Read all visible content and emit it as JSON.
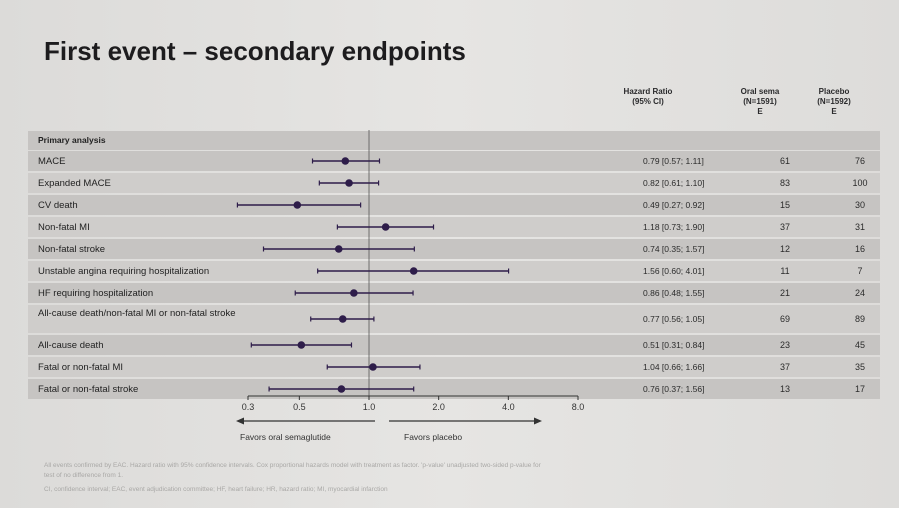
{
  "title": "First event – secondary endpoints",
  "headers": {
    "hr_line1": "Hazard Ratio",
    "hr_line2": "(95% CI)",
    "oral_line1": "Oral sema",
    "oral_line2": "(N=1591)",
    "oral_line3": "E",
    "placebo_line1": "Placebo",
    "placebo_line2": "(N=1592)",
    "placebo_line3": "E"
  },
  "section_label": "Primary analysis",
  "favors_left": "Favors oral semaglutide",
  "favors_right": "Favors placebo",
  "footnote_line1": "All events confirmed by EAC. Hazard ratio with 95% confidence intervals. Cox proportional hazards model with treatment as factor. 'p-value' unadjusted two-sided p-value for",
  "footnote_line2": "test of no difference from 1.",
  "footnote_line3": "CI, confidence interval; EAC, event adjudication committee; HF, heart failure; HR, hazard ratio; MI, myocardial infarction",
  "colors": {
    "marker": "#2e1d4a",
    "row_band": "#c6c4c2",
    "row_band_alt": "#cfcdcb"
  },
  "chart_data": {
    "type": "forest",
    "x_scale": "log",
    "xlim": [
      0.3,
      8.0
    ],
    "x_ticks": [
      0.3,
      0.5,
      1.0,
      2.0,
      4.0,
      8.0
    ],
    "x_tick_labels": [
      "0.3",
      "0.5",
      "1.0",
      "2.0",
      "4.0",
      "8.0"
    ],
    "reference_line": 1.0,
    "rows": [
      {
        "label": "MACE",
        "hr": 0.79,
        "lo": 0.57,
        "hi": 1.11,
        "ci_text": "0.79 [0.57; 1.11]",
        "oral": "61",
        "placebo": "76"
      },
      {
        "label": "Expanded MACE",
        "hr": 0.82,
        "lo": 0.61,
        "hi": 1.1,
        "ci_text": "0.82 [0.61; 1.10]",
        "oral": "83",
        "placebo": "100"
      },
      {
        "label": "CV death",
        "hr": 0.49,
        "lo": 0.27,
        "hi": 0.92,
        "ci_text": "0.49 [0.27; 0.92]",
        "oral": "15",
        "placebo": "30"
      },
      {
        "label": "Non-fatal MI",
        "hr": 1.18,
        "lo": 0.73,
        "hi": 1.9,
        "ci_text": "1.18 [0.73; 1.90]",
        "oral": "37",
        "placebo": "31"
      },
      {
        "label": "Non-fatal stroke",
        "hr": 0.74,
        "lo": 0.35,
        "hi": 1.57,
        "ci_text": "0.74 [0.35; 1.57]",
        "oral": "12",
        "placebo": "16"
      },
      {
        "label": "Unstable angina requiring hospitalization",
        "hr": 1.56,
        "lo": 0.6,
        "hi": 4.01,
        "ci_text": "1.56 [0.60; 4.01]",
        "oral": "11",
        "placebo": "7"
      },
      {
        "label": "HF requiring hospitalization",
        "hr": 0.86,
        "lo": 0.48,
        "hi": 1.55,
        "ci_text": "0.86 [0.48; 1.55]",
        "oral": "21",
        "placebo": "24"
      },
      {
        "label": "All-cause death/non-fatal MI or non-fatal stroke",
        "hr": 0.77,
        "lo": 0.56,
        "hi": 1.05,
        "ci_text": "0.77 [0.56; 1.05]",
        "oral": "69",
        "placebo": "89"
      },
      {
        "label": "All-cause death",
        "hr": 0.51,
        "lo": 0.31,
        "hi": 0.84,
        "ci_text": "0.51 [0.31; 0.84]",
        "oral": "23",
        "placebo": "45"
      },
      {
        "label": "Fatal or non-fatal MI",
        "hr": 1.04,
        "lo": 0.66,
        "hi": 1.66,
        "ci_text": "1.04 [0.66; 1.66]",
        "oral": "37",
        "placebo": "35"
      },
      {
        "label": "Fatal or non-fatal stroke",
        "hr": 0.76,
        "lo": 0.37,
        "hi": 1.56,
        "ci_text": "0.76 [0.37; 1.56]",
        "oral": "13",
        "placebo": "17"
      }
    ]
  }
}
